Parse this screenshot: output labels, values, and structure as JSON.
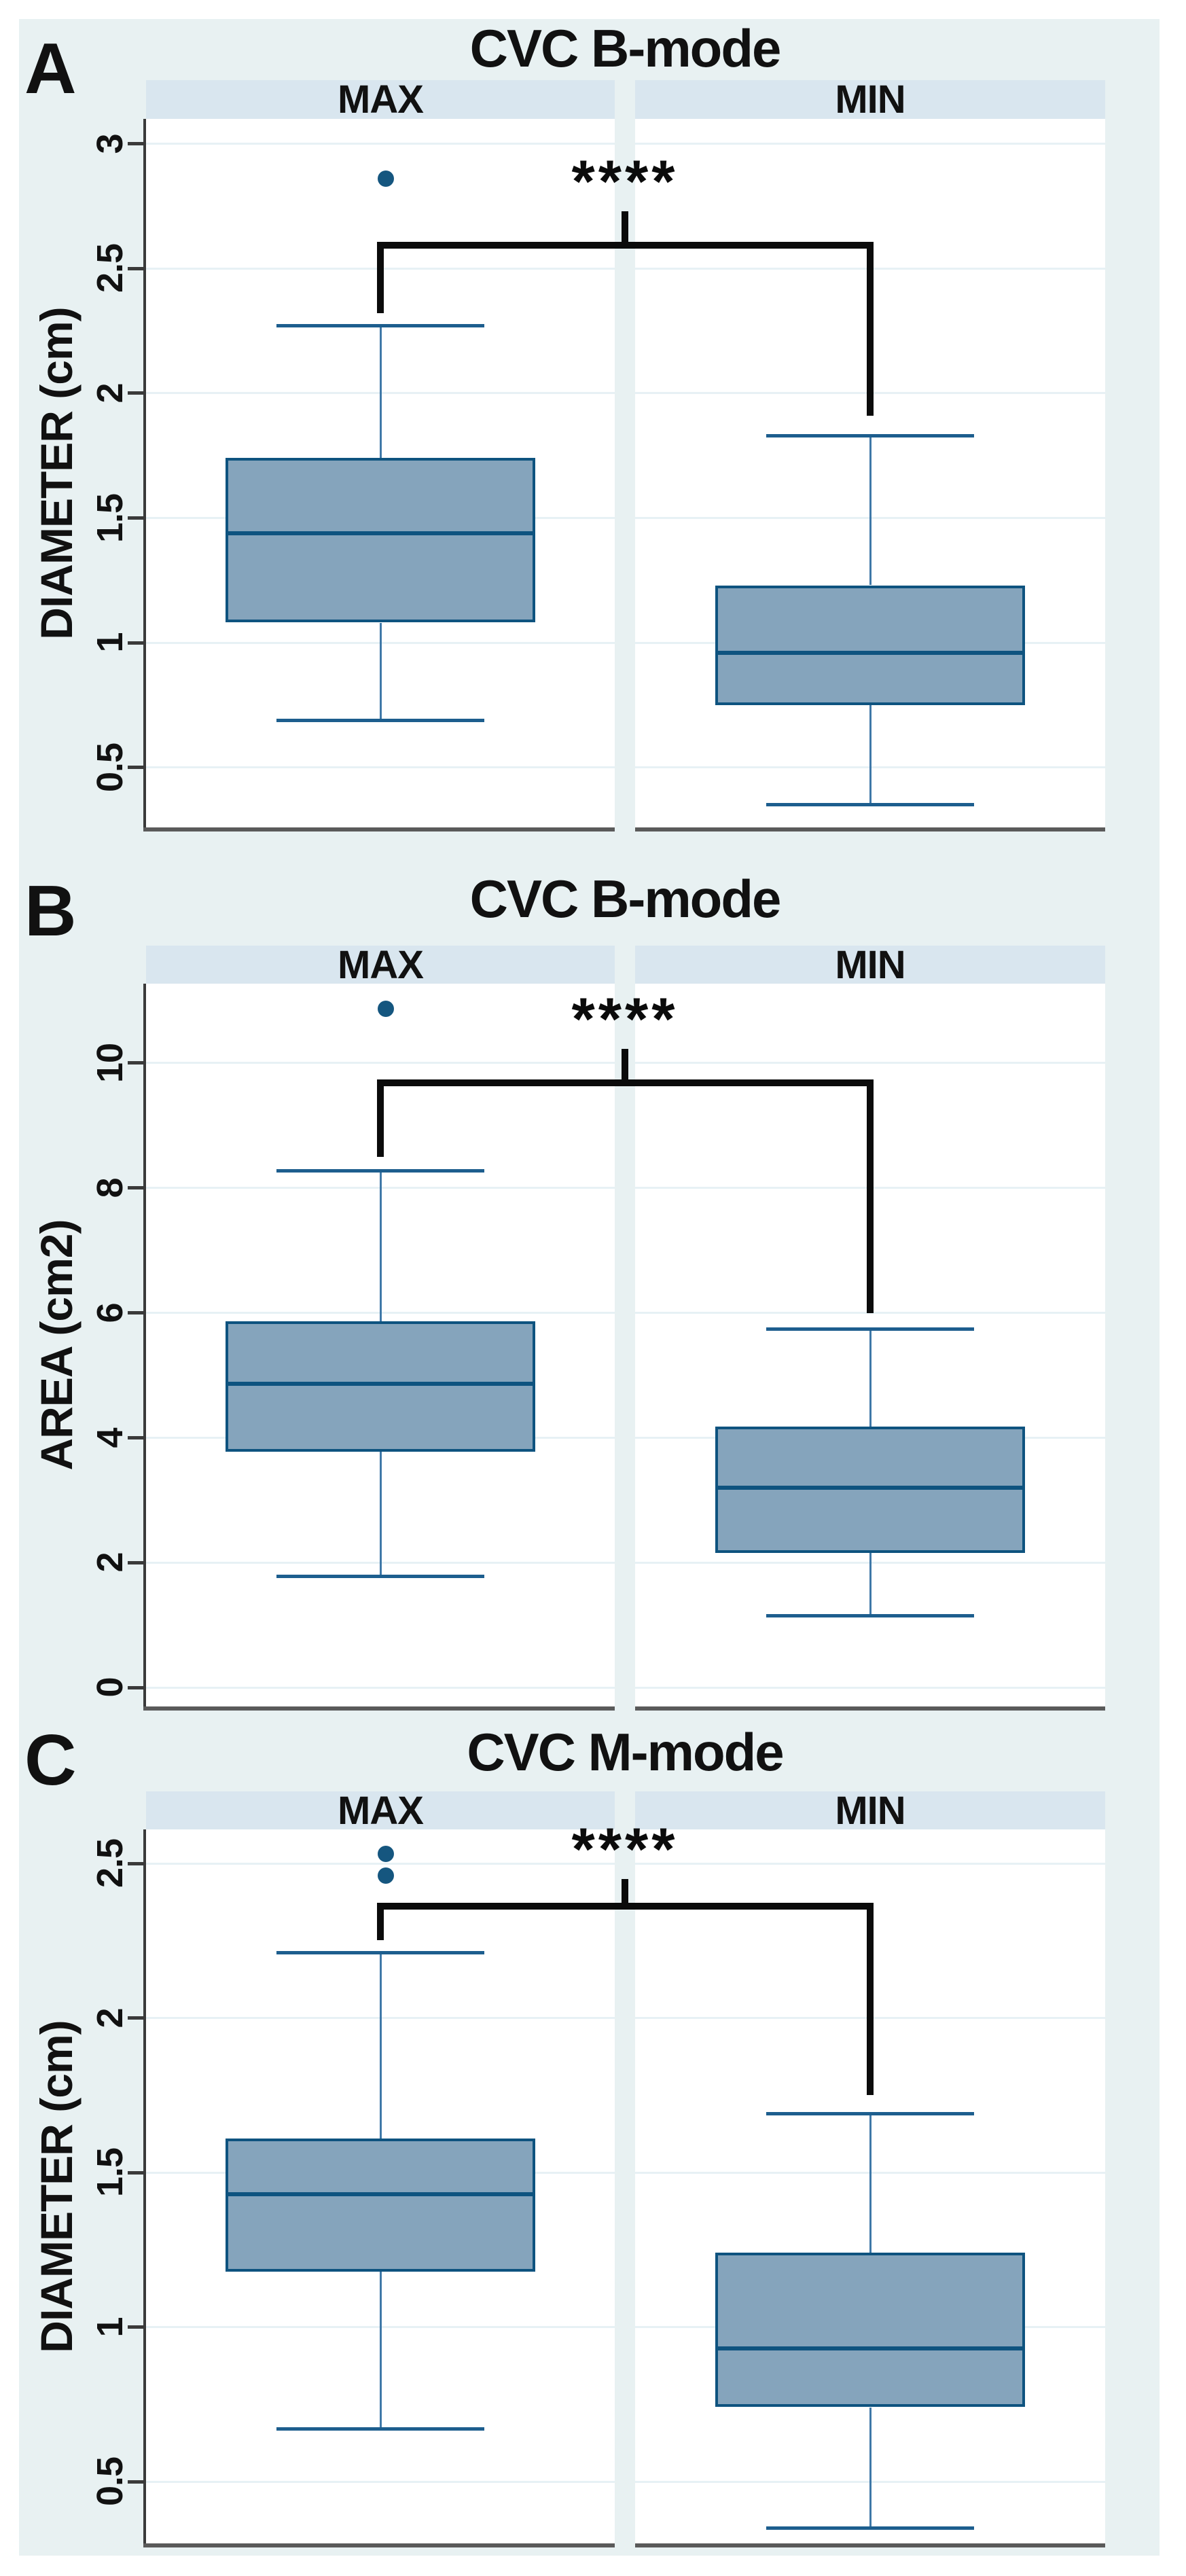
{
  "figure": {
    "description_labels": [
      "A",
      "B",
      "C"
    ]
  },
  "colors": {
    "background": "#e8f1f2",
    "header_band": "#d9e6ef",
    "plot_background": "#ffffff",
    "gridline": "#e7f1f5",
    "y_axis": "#3a3a3a",
    "x_axis": "#5a5a5a",
    "box_fill": "#85a4bc",
    "box_border": "#0e537f",
    "whisker_stem": "#3f78a8",
    "whisker_cap": "#1d5e8e",
    "outlier": "#15567f",
    "bracket": "#0b0b0b",
    "text": "#111111"
  },
  "chart_data": [
    {
      "type": "box",
      "panel_label": "A",
      "title": "CVC B-mode",
      "ylabel": "DIAMETER (cm)",
      "columns": [
        "MAX",
        "MIN"
      ],
      "yticks": [
        3,
        2.5,
        2,
        1.5,
        1,
        0.5
      ],
      "ytick_labels": [
        "3",
        "2.5",
        "2",
        "1.5",
        "1",
        "0.5"
      ],
      "ylim": [
        0.26,
        3.1
      ],
      "grid": true,
      "significance": "****",
      "bracket": {
        "y": 2.58,
        "drop_left": 2.32,
        "drop_right": 1.91,
        "stem_top": 2.73
      },
      "series": [
        {
          "name": "MAX",
          "whisker_low": 0.69,
          "q1": 1.08,
          "median": 1.44,
          "q3": 1.74,
          "whisker_high": 2.27,
          "outliers": [
            2.86
          ]
        },
        {
          "name": "MIN",
          "whisker_low": 0.35,
          "q1": 0.75,
          "median": 0.96,
          "q3": 1.23,
          "whisker_high": 1.83,
          "outliers": []
        }
      ]
    },
    {
      "type": "box",
      "panel_label": "B",
      "title": "CVC B-mode",
      "ylabel": "AREA (cm2)",
      "columns": [
        "MAX",
        "MIN"
      ],
      "yticks": [
        10,
        8,
        6,
        4,
        2,
        0
      ],
      "ytick_labels": [
        "10",
        "8",
        "6",
        "4",
        "2",
        "0"
      ],
      "ylim": [
        -0.3,
        11.27
      ],
      "grid": true,
      "significance": "****",
      "bracket": {
        "y": 9.63,
        "drop_left": 8.5,
        "drop_right": 6.0,
        "stem_top": 10.23
      },
      "series": [
        {
          "name": "MAX",
          "whisker_low": 1.78,
          "q1": 3.78,
          "median": 4.87,
          "q3": 5.87,
          "whisker_high": 8.27,
          "outliers": [
            10.87
          ]
        },
        {
          "name": "MIN",
          "whisker_low": 1.15,
          "q1": 2.16,
          "median": 3.2,
          "q3": 4.18,
          "whisker_high": 5.74,
          "outliers": []
        }
      ]
    },
    {
      "type": "box",
      "panel_label": "C",
      "title": "CVC M-mode",
      "ylabel": "DIAMETER (cm)",
      "columns": [
        "MAX",
        "MIN"
      ],
      "yticks": [
        2.5,
        2,
        1.5,
        1,
        0.5
      ],
      "ytick_labels": [
        "2.5",
        "2",
        "1.5",
        "1",
        "0.5"
      ],
      "ylim": [
        0.3,
        2.61
      ],
      "grid": true,
      "significance": "****",
      "bracket": {
        "y": 2.35,
        "drop_left": 2.25,
        "drop_right": 1.75,
        "stem_top": 2.45
      },
      "series": [
        {
          "name": "MAX",
          "whisker_low": 0.67,
          "q1": 1.18,
          "median": 1.43,
          "q3": 1.61,
          "whisker_high": 2.21,
          "outliers": [
            2.53,
            2.46
          ]
        },
        {
          "name": "MIN",
          "whisker_low": 0.35,
          "q1": 0.74,
          "median": 0.93,
          "q3": 1.24,
          "whisker_high": 1.69,
          "outliers": []
        }
      ]
    }
  ]
}
